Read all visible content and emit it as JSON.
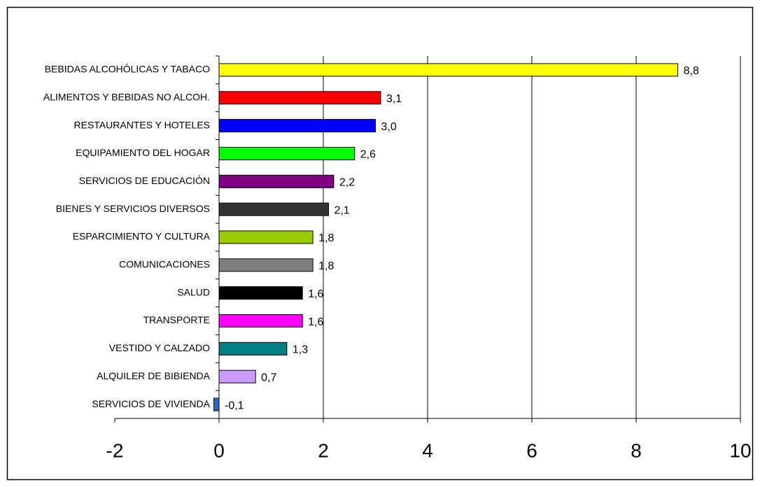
{
  "chart_data": {
    "type": "bar",
    "orientation": "horizontal",
    "categories": [
      "BEBIDAS ALCOHÓLICAS Y TABACO",
      "ALIMENTOS Y BEBIDAS NO ALCOH.",
      "RESTAURANTES Y HOTELES",
      "EQUIPAMIENTO DEL HOGAR",
      "SERVICIOS DE EDUCACIÓN",
      "BIENES Y SERVICIOS DIVERSOS",
      "ESPARCIMIENTO Y CULTURA",
      "COMUNICACIONES",
      "SALUD",
      "TRANSPORTE",
      "VESTIDO Y CALZADO",
      "ALQUILER DE BIBIENDA",
      "SERVICIOS DE VIVIENDA"
    ],
    "values": [
      8.8,
      3.1,
      3.0,
      2.6,
      2.2,
      2.1,
      1.8,
      1.8,
      1.6,
      1.6,
      1.3,
      0.7,
      -0.1
    ],
    "value_labels": [
      "8,8",
      "3,1",
      "3,0",
      "2,6",
      "2,2",
      "2,1",
      "1,8",
      "1,8",
      "1,6",
      "1,6",
      "1,3",
      "0,7",
      "-0,1"
    ],
    "colors": [
      "#ffff00",
      "#ff0000",
      "#0000ff",
      "#00ff00",
      "#800080",
      "#333333",
      "#99cc00",
      "#808080",
      "#000000",
      "#ff00ff",
      "#008080",
      "#cc99ff",
      "#3366cc"
    ],
    "xlim": [
      -2,
      10
    ],
    "xticks": [
      -2,
      0,
      2,
      4,
      6,
      8,
      10
    ],
    "grid": true
  }
}
